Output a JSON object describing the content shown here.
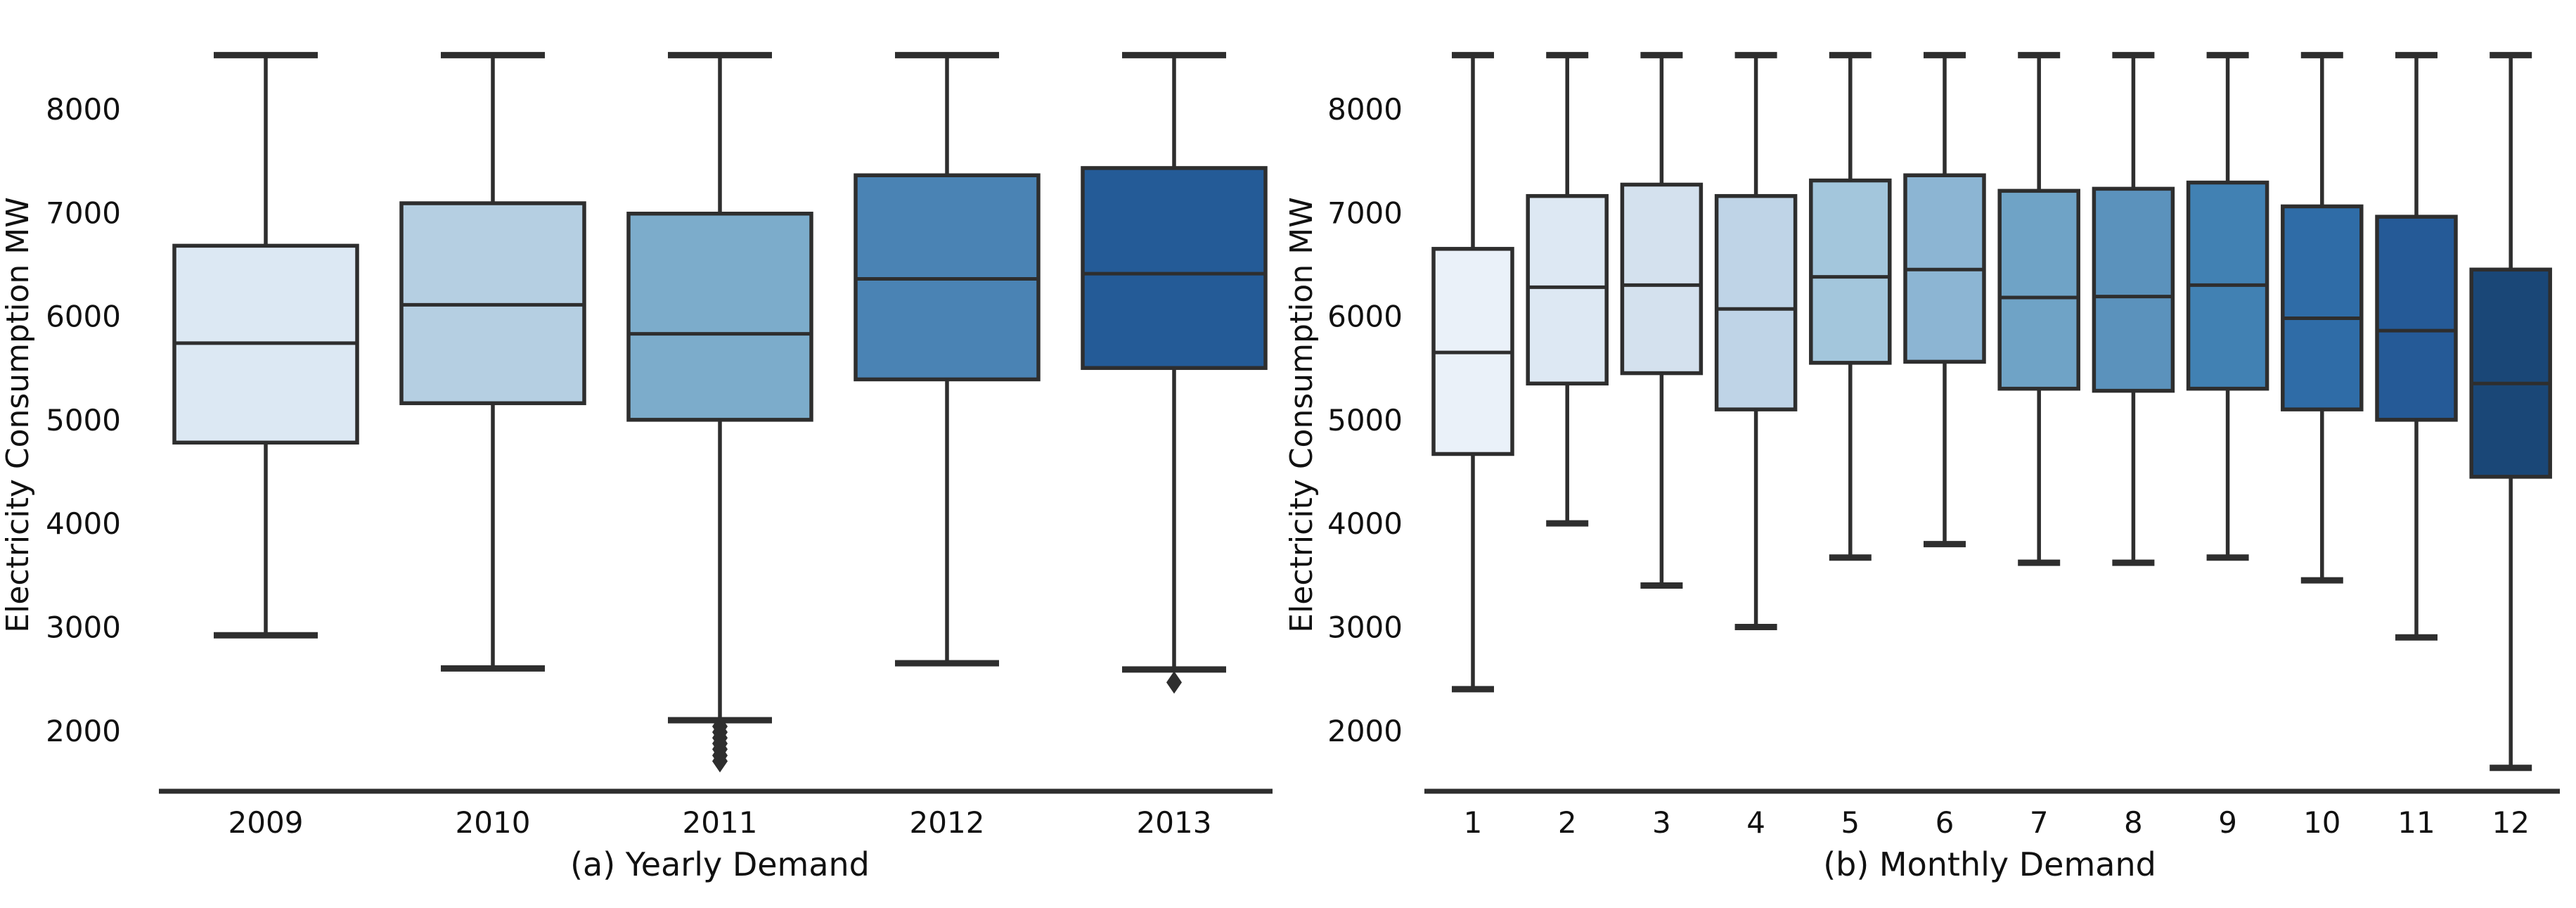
{
  "figure": {
    "background": "#ffffff",
    "line_color": "#2e2e2e",
    "text_color": "#111111"
  },
  "y_axis": {
    "label": "Electricity Consumption MW",
    "ticks": [
      8000,
      7000,
      6000,
      5000,
      4000,
      3000,
      2000
    ]
  },
  "chart_data": [
    {
      "type": "box",
      "panel": "a",
      "title": "(a) Yearly Demand",
      "xlabel": "(a) Yearly Demand",
      "ylabel": "Electricity Consumption MW",
      "ylim": [
        1410,
        9050
      ],
      "grid": false,
      "yticks": [
        2000,
        3000,
        4000,
        5000,
        6000,
        7000,
        8000
      ],
      "categories": [
        "2009",
        "2010",
        "2011",
        "2012",
        "2013"
      ],
      "colors": [
        "#dce8f3",
        "#b5cfe2",
        "#7caccb",
        "#4a83b4",
        "#245b97"
      ],
      "boxes": [
        {
          "label": "2009",
          "whislo": 2920,
          "q1": 4780,
          "med": 5740,
          "q3": 6680,
          "whishi": 8520,
          "fliers": []
        },
        {
          "label": "2010",
          "whislo": 2600,
          "q1": 5160,
          "med": 6110,
          "q3": 7090,
          "whishi": 8520,
          "fliers": []
        },
        {
          "label": "2011",
          "whislo": 2100,
          "q1": 5000,
          "med": 5830,
          "q3": 6990,
          "whishi": 8520,
          "fliers": [
            2040,
            1985,
            1930,
            1875,
            1820,
            1760,
            1705
          ]
        },
        {
          "label": "2012",
          "whislo": 2650,
          "q1": 5390,
          "med": 6360,
          "q3": 7360,
          "whishi": 8520,
          "fliers": []
        },
        {
          "label": "2013",
          "whislo": 2590,
          "q1": 5500,
          "med": 6410,
          "q3": 7430,
          "whishi": 8520,
          "fliers": [
            2465
          ]
        }
      ]
    },
    {
      "type": "box",
      "panel": "b",
      "title": "(b) Monthly Demand",
      "xlabel": "(b) Monthly Demand",
      "ylabel": "Electricity Consumption MW",
      "ylim": [
        1410,
        9050
      ],
      "grid": false,
      "yticks": [
        2000,
        3000,
        4000,
        5000,
        6000,
        7000,
        8000
      ],
      "categories": [
        "1",
        "2",
        "3",
        "4",
        "5",
        "6",
        "7",
        "8",
        "9",
        "10",
        "11",
        "12"
      ],
      "colors": [
        "#eaf1f9",
        "#dde8f3",
        "#d4e1ee",
        "#bfd4e7",
        "#a3c6dc",
        "#8cb5d3",
        "#6fa3c6",
        "#5b92bc",
        "#4181b3",
        "#2f6ca7",
        "#255a97",
        "#1a4777"
      ],
      "boxes": [
        {
          "label": "1",
          "whislo": 2400,
          "q1": 4670,
          "med": 5650,
          "q3": 6650,
          "whishi": 8520,
          "fliers": []
        },
        {
          "label": "2",
          "whislo": 4000,
          "q1": 5350,
          "med": 6280,
          "q3": 7160,
          "whishi": 8520,
          "fliers": []
        },
        {
          "label": "3",
          "whislo": 3400,
          "q1": 5450,
          "med": 6300,
          "q3": 7270,
          "whishi": 8520,
          "fliers": []
        },
        {
          "label": "4",
          "whislo": 3000,
          "q1": 5100,
          "med": 6070,
          "q3": 7160,
          "whishi": 8520,
          "fliers": []
        },
        {
          "label": "5",
          "whislo": 3670,
          "q1": 5550,
          "med": 6380,
          "q3": 7310,
          "whishi": 8520,
          "fliers": []
        },
        {
          "label": "6",
          "whislo": 3800,
          "q1": 5560,
          "med": 6450,
          "q3": 7360,
          "whishi": 8520,
          "fliers": []
        },
        {
          "label": "7",
          "whislo": 3620,
          "q1": 5300,
          "med": 6180,
          "q3": 7210,
          "whishi": 8520,
          "fliers": []
        },
        {
          "label": "8",
          "whislo": 3620,
          "q1": 5280,
          "med": 6190,
          "q3": 7230,
          "whishi": 8520,
          "fliers": []
        },
        {
          "label": "9",
          "whislo": 3670,
          "q1": 5300,
          "med": 6300,
          "q3": 7290,
          "whishi": 8520,
          "fliers": []
        },
        {
          "label": "10",
          "whislo": 3450,
          "q1": 5100,
          "med": 5980,
          "q3": 7060,
          "whishi": 8520,
          "fliers": []
        },
        {
          "label": "11",
          "whislo": 2900,
          "q1": 5000,
          "med": 5860,
          "q3": 6960,
          "whishi": 8520,
          "fliers": []
        },
        {
          "label": "12",
          "whislo": 1640,
          "q1": 4450,
          "med": 5350,
          "q3": 6450,
          "whishi": 8520,
          "fliers": []
        }
      ]
    }
  ]
}
